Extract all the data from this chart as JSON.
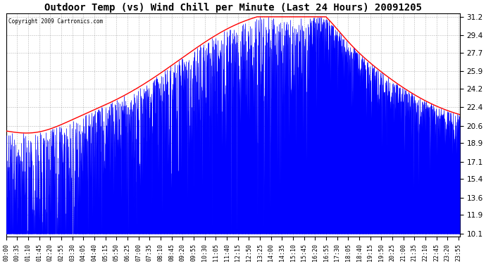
{
  "title": "Outdoor Temp (vs) Wind Chill per Minute (Last 24 Hours) 20091205",
  "copyright_text": "Copyright 2009 Cartronics.com",
  "y_min": 10.1,
  "y_max": 31.2,
  "y_ticks": [
    31.2,
    29.4,
    27.7,
    25.9,
    24.2,
    22.4,
    20.6,
    18.9,
    17.1,
    15.4,
    13.6,
    11.9,
    10.1
  ],
  "background_color": "#ffffff",
  "plot_bg_color": "#ffffff",
  "grid_color": "#888888",
  "line_color_outdoor": "red",
  "bar_color_wind": "blue",
  "title_fontsize": 10,
  "x_label_fontsize": 6,
  "y_label_fontsize": 7.5,
  "num_minutes": 1440,
  "x_tick_interval": 35,
  "x_tick_labels": [
    "00:00",
    "00:35",
    "01:10",
    "01:45",
    "02:20",
    "02:55",
    "03:30",
    "04:05",
    "04:40",
    "05:15",
    "05:50",
    "06:25",
    "07:00",
    "07:35",
    "08:10",
    "08:45",
    "09:20",
    "09:55",
    "10:30",
    "11:05",
    "11:40",
    "12:15",
    "12:50",
    "13:25",
    "14:00",
    "14:35",
    "15:10",
    "15:45",
    "16:20",
    "16:55",
    "17:30",
    "18:05",
    "18:40",
    "19:15",
    "19:50",
    "20:25",
    "21:00",
    "21:35",
    "22:10",
    "22:45",
    "23:20",
    "23:55"
  ]
}
